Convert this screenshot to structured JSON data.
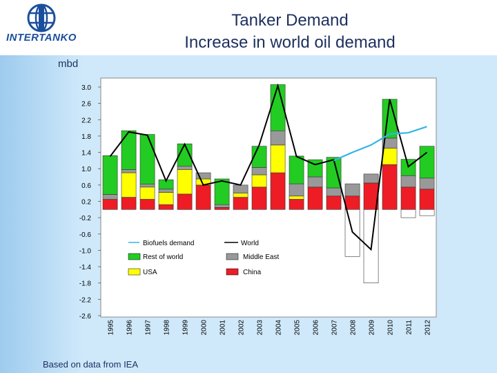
{
  "header": {
    "title_line1": "Tanker Demand",
    "title_line2": "Increase in world oil demand",
    "logo_text": "INTERTANKO"
  },
  "unit_label": "mbd",
  "footnote": "Based on data from IEA",
  "colors": {
    "china": "#ee1c24",
    "usa": "#ffff00",
    "middle_east": "#999999",
    "rest_of_world": "#22cc22",
    "world": "#000000",
    "biofuels": "#33b5e5",
    "plot_bg": "#ffffff"
  },
  "chart_data": {
    "type": "bar",
    "stacked": true,
    "title": "",
    "xlabel": "",
    "ylabel": "mbd",
    "ylim": [
      -2.6,
      3.05
    ],
    "yticks": [
      "3.0",
      "2.6",
      "2.2",
      "1.8",
      "1.4",
      "1.0",
      "0.6",
      "0.2",
      "-0.2",
      "-0.6",
      "-1.0",
      "-1.4",
      "-1.8",
      "-2.2",
      "-2.6"
    ],
    "ytick_values": [
      3.0,
      2.6,
      2.2,
      1.8,
      1.4,
      1.0,
      0.6,
      0.2,
      -0.2,
      -0.6,
      -1.0,
      -1.4,
      -1.8,
      -2.2,
      -2.6
    ],
    "categories": [
      "1995",
      "1996",
      "1997",
      "1998",
      "1999",
      "2000",
      "2001",
      "2002",
      "2003",
      "2004",
      "2005",
      "2006",
      "2007",
      "2008",
      "2009",
      "2010",
      "2011",
      "2012"
    ],
    "grid": false,
    "legend_placement": "inside-lower-left",
    "legend": [
      "Biofuels demand",
      "World",
      "Rest of world",
      "Middle East",
      "USA",
      "China"
    ],
    "series": [
      {
        "name": "China",
        "key": "china",
        "values": [
          0.25,
          0.3,
          0.25,
          0.12,
          0.38,
          0.6,
          0.05,
          0.3,
          0.55,
          0.9,
          0.25,
          0.55,
          0.33,
          0.33,
          0.65,
          1.1,
          0.55,
          0.5
        ]
      },
      {
        "name": "USA",
        "key": "usa",
        "values": [
          0.0,
          0.6,
          0.3,
          0.3,
          0.6,
          0.15,
          0.0,
          0.1,
          0.3,
          0.68,
          0.08,
          0.0,
          0.0,
          -1.15,
          -1.8,
          0.4,
          -0.2,
          -0.15
        ]
      },
      {
        "name": "Middle East",
        "key": "middle_east",
        "values": [
          0.12,
          0.08,
          0.07,
          0.08,
          0.08,
          0.15,
          0.07,
          0.2,
          0.18,
          0.35,
          0.3,
          0.25,
          0.2,
          0.3,
          0.22,
          0.25,
          0.28,
          0.27
        ]
      },
      {
        "name": "Rest of world",
        "key": "rest_of_world",
        "values": [
          0.95,
          0.95,
          1.22,
          0.23,
          0.55,
          0.0,
          0.63,
          0.0,
          0.52,
          1.13,
          0.68,
          0.42,
          0.75,
          0.0,
          0.0,
          0.95,
          0.4,
          0.78
        ]
      },
      {
        "name": "World",
        "key": "world",
        "type": "line",
        "values": [
          1.3,
          1.9,
          1.82,
          0.7,
          1.6,
          0.6,
          0.7,
          0.6,
          1.58,
          3.03,
          1.3,
          1.1,
          1.22,
          -0.55,
          -0.98,
          2.7,
          1.05,
          1.4
        ]
      },
      {
        "name": "Biofuels demand",
        "key": "biofuels",
        "type": "line",
        "x": [
          "2007",
          "2008",
          "2009",
          "2010",
          "2011",
          "2012"
        ],
        "values": [
          1.2,
          1.4,
          1.58,
          1.85,
          1.88,
          2.03
        ]
      }
    ]
  }
}
